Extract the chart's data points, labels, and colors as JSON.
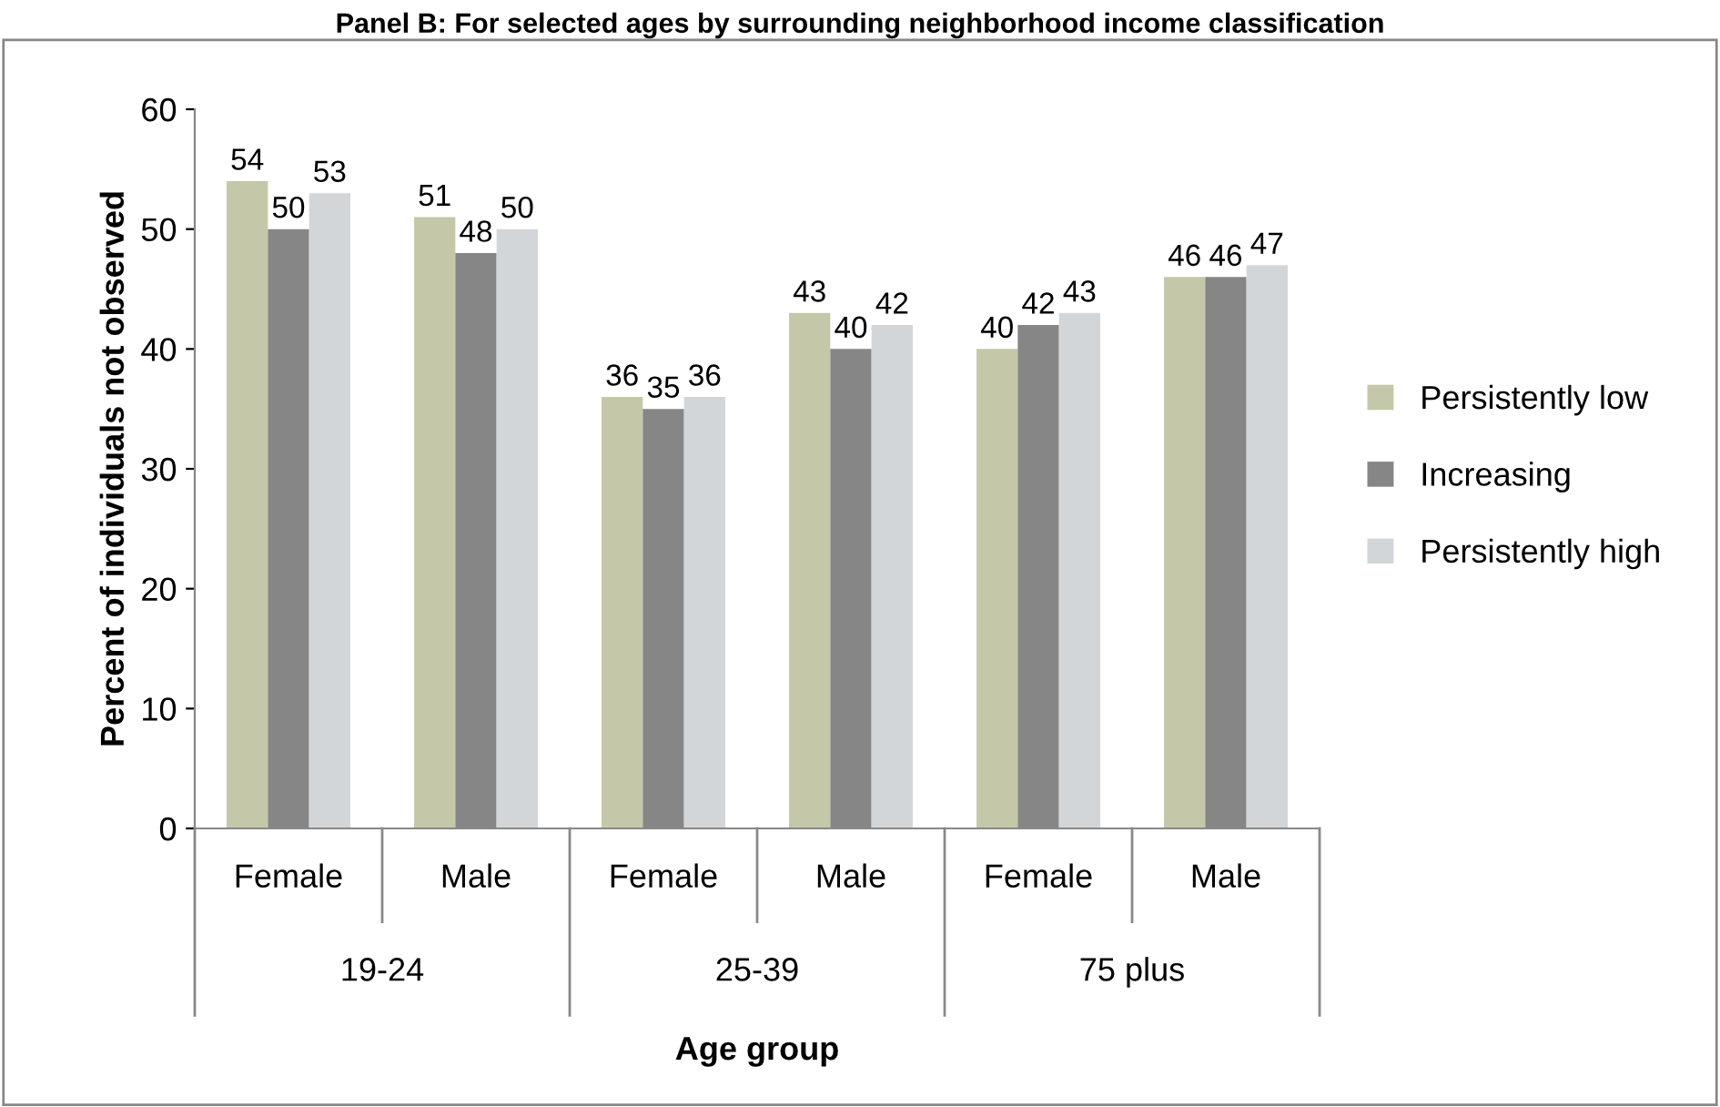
{
  "chart_data": {
    "type": "bar",
    "title": "Panel B: For selected ages by surrounding neighborhood income classification",
    "xlabel": "Age group",
    "ylabel": "Percent of individuals not observed",
    "categories": [
      "Female",
      "Male",
      "Female",
      "Male",
      "Female",
      "Male"
    ],
    "series": [
      {
        "name": "Persistently low",
        "color": "#c4c8a8",
        "values": [
          54,
          51,
          36,
          43,
          40,
          46
        ]
      },
      {
        "name": "Increasing",
        "color": "#868686",
        "values": [
          50,
          48,
          35,
          40,
          42,
          46
        ]
      },
      {
        "name": "Persistently high",
        "color": "#d3d6d9",
        "values": [
          53,
          50,
          36,
          42,
          43,
          47
        ]
      }
    ],
    "annotations": [
      "19-24",
      "25-39",
      "75 plus"
    ],
    "ylim": [
      0,
      60
    ],
    "yticks": [
      0,
      10,
      20,
      30,
      40,
      50,
      60
    ],
    "data_labels": true,
    "legend": "right",
    "grid": false
  }
}
